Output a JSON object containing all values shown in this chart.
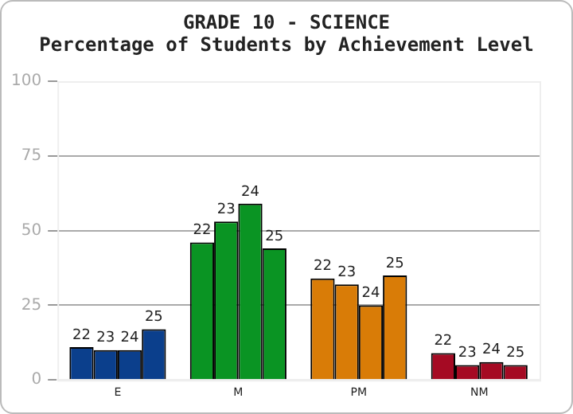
{
  "chart_data": {
    "type": "bar",
    "title": "GRADE 10 - SCIENCE",
    "subtitle": "Percentage of Students by Achievement Level",
    "categories": [
      "E",
      "M",
      "PM",
      "NM"
    ],
    "series": [
      {
        "name": "22",
        "colors": [
          "#0b3f8c",
          "#0a9423",
          "#d97c07",
          "#a50a23"
        ],
        "values": [
          11,
          46,
          34,
          9
        ]
      },
      {
        "name": "23",
        "colors": [
          "#0b3f8c",
          "#0a9423",
          "#d97c07",
          "#a50a23"
        ],
        "values": [
          10,
          53,
          32,
          5
        ]
      },
      {
        "name": "24",
        "colors": [
          "#0b3f8c",
          "#0a9423",
          "#d97c07",
          "#a50a23"
        ],
        "values": [
          10,
          59,
          25,
          6
        ]
      },
      {
        "name": "25",
        "colors": [
          "#0b3f8c",
          "#0a9423",
          "#d97c07",
          "#a50a23"
        ],
        "values": [
          17,
          44,
          35,
          5
        ]
      }
    ],
    "ylim": [
      0,
      100
    ],
    "yticks": [
      0,
      25,
      50,
      75,
      100
    ],
    "grid": "y",
    "legend": false
  }
}
